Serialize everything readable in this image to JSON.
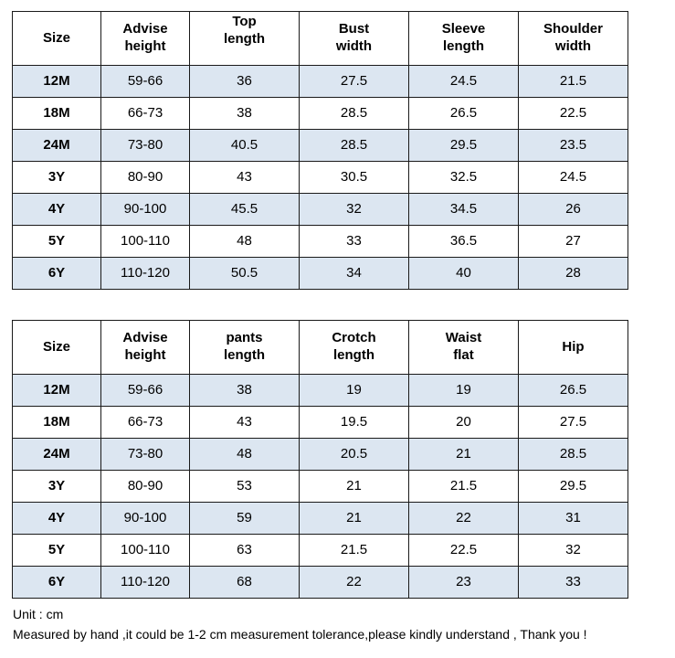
{
  "top_table": {
    "headers": [
      [
        "Size"
      ],
      [
        "Advise",
        "height"
      ],
      [
        "Top",
        "length"
      ],
      [
        "Bust",
        "width"
      ],
      [
        "Sleeve",
        "length"
      ],
      [
        "Shoulder",
        "width"
      ]
    ],
    "rows": [
      [
        "12M",
        "59-66",
        "36",
        "27.5",
        "24.5",
        "21.5"
      ],
      [
        "18M",
        "66-73",
        "38",
        "28.5",
        "26.5",
        "22.5"
      ],
      [
        "24M",
        "73-80",
        "40.5",
        "28.5",
        "29.5",
        "23.5"
      ],
      [
        "3Y",
        "80-90",
        "43",
        "30.5",
        "32.5",
        "24.5"
      ],
      [
        "4Y",
        "90-100",
        "45.5",
        "32",
        "34.5",
        "26"
      ],
      [
        "5Y",
        "100-110",
        "48",
        "33",
        "36.5",
        "27"
      ],
      [
        "6Y",
        "110-120",
        "50.5",
        "34",
        "40",
        "28"
      ]
    ]
  },
  "bottom_table": {
    "headers": [
      [
        "Size"
      ],
      [
        "Advise",
        "height"
      ],
      [
        "pants",
        "length"
      ],
      [
        "Crotch",
        "length"
      ],
      [
        "Waist",
        "flat"
      ],
      [
        "Hip"
      ]
    ],
    "rows": [
      [
        "12M",
        "59-66",
        "38",
        "19",
        "19",
        "26.5"
      ],
      [
        "18M",
        "66-73",
        "43",
        "19.5",
        "20",
        "27.5"
      ],
      [
        "24M",
        "73-80",
        "48",
        "20.5",
        "21",
        "28.5"
      ],
      [
        "3Y",
        "80-90",
        "53",
        "21",
        "21.5",
        "29.5"
      ],
      [
        "4Y",
        "90-100",
        "59",
        "21",
        "22",
        "31"
      ],
      [
        "5Y",
        "100-110",
        "63",
        "21.5",
        "22.5",
        "32"
      ],
      [
        "6Y",
        "110-120",
        "68",
        "22",
        "23",
        "33"
      ]
    ]
  },
  "notes": {
    "unit": "Unit : cm",
    "tolerance": "Measured by hand ,it could be 1-2 cm measurement tolerance,please kindly understand , Thank you !"
  },
  "colors": {
    "shaded_row": "#dce6f1",
    "plain_row": "#ffffff",
    "border": "#1a1a1a"
  }
}
